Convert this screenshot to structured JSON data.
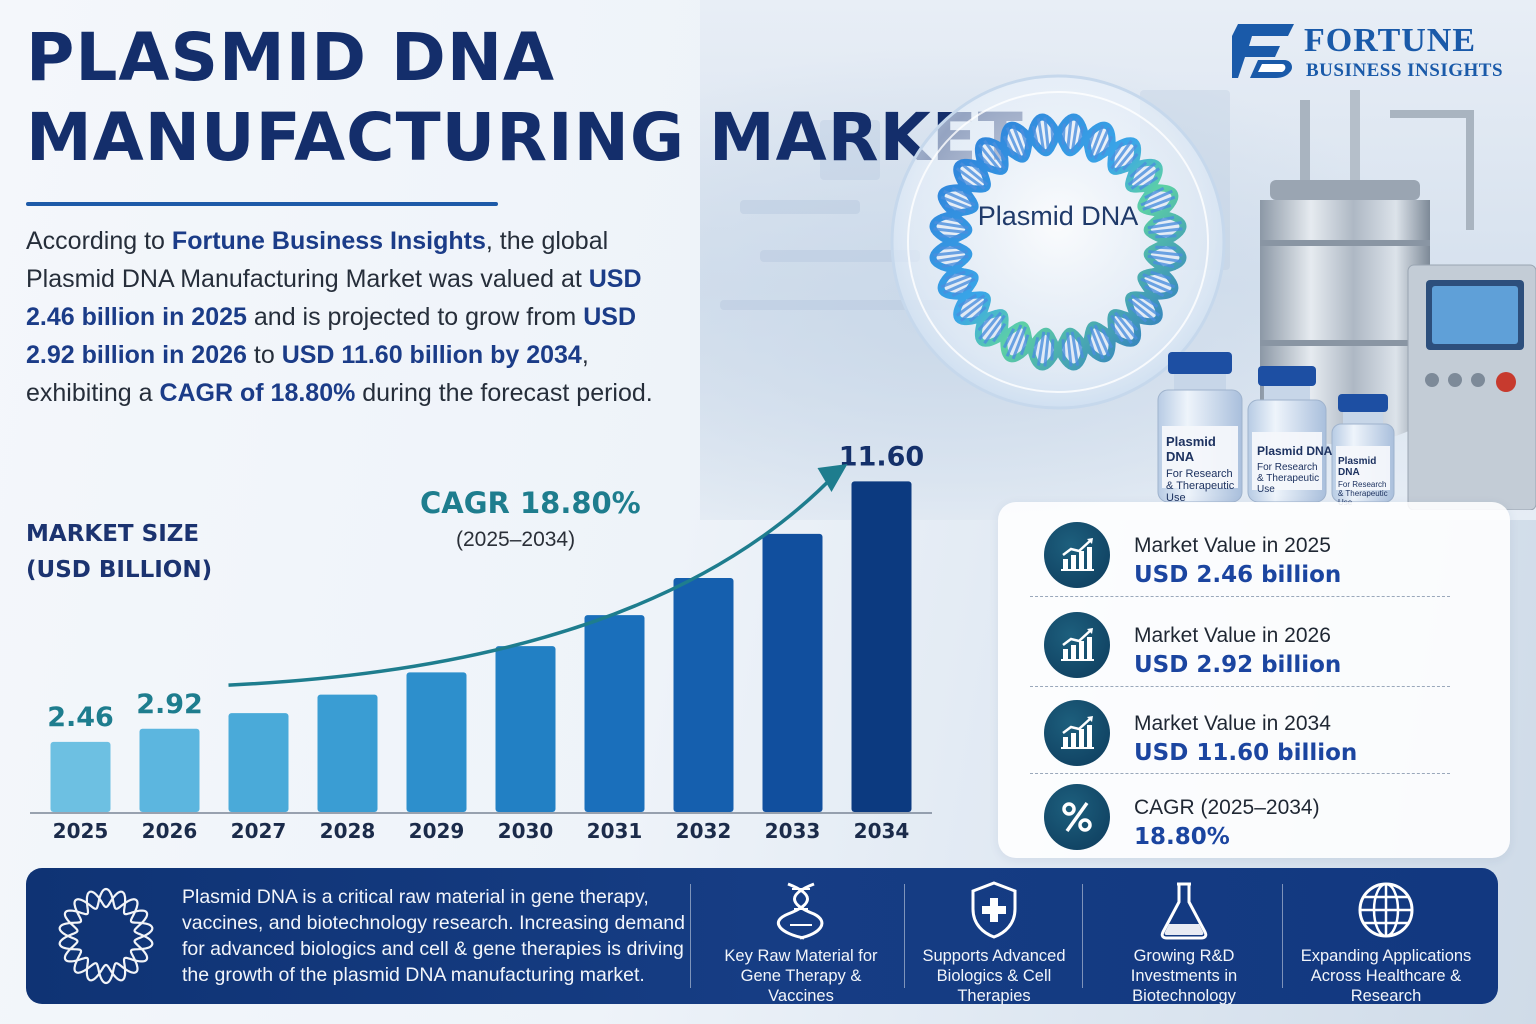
{
  "title_line1": "PLASMID DNA",
  "title_line2": "MANUFACTURING MARKET",
  "brand": {
    "name": "FORTUNE",
    "sub": "BUSINESS INSIGHTS",
    "color": "#1a5aa9"
  },
  "intro": {
    "p1": "According to ",
    "brand": "Fortune Business Insights",
    "p2": ", the global Plasmid DNA Manufacturing Market was valued at ",
    "v2025": "USD 2.46 billion in 2025",
    "p3": " and is projected to grow from ",
    "v2026": "USD 2.92 billion in 2026",
    "p4": " to ",
    "v2034": "USD 11.60 billion by 2034",
    "p5": ", exhibiting a ",
    "cagr": "CAGR of 18.80%",
    "p6": " during the forecast period."
  },
  "dna_label": "Plasmid DNA",
  "vials": [
    {
      "title": "Plasmid DNA",
      "line1": "For Research",
      "line2": "& Therapeutic Use"
    },
    {
      "title": "Plasmid DNA",
      "line1": "For Research",
      "line2": "& Therapeutic Use"
    },
    {
      "title": "Plasmid DNA",
      "line1": "For Research",
      "line2": "& Therapeutic Use"
    }
  ],
  "chart_data": {
    "type": "bar",
    "ylabel_line1": "MARKET SIZE",
    "ylabel_line2": "(USD BILLION)",
    "categories": [
      "2025",
      "2026",
      "2027",
      "2028",
      "2029",
      "2030",
      "2031",
      "2032",
      "2033",
      "2034"
    ],
    "values": [
      2.46,
      2.92,
      3.47,
      4.12,
      4.9,
      5.82,
      6.91,
      8.21,
      9.76,
      11.6
    ],
    "data_labels": [
      "2.46",
      "2.92",
      "",
      "",
      "",
      "",
      "",
      "",
      "",
      "11.60"
    ],
    "ylim": [
      0,
      12
    ],
    "annotation": "CAGR 18.80%",
    "annotation_period": "(2025–2034)",
    "bar_colors": [
      "#6dc0e2",
      "#5cb6df",
      "#4aaad9",
      "#3a9dd3",
      "#2d8fcc",
      "#2280c4",
      "#1a6fbb",
      "#155fae",
      "#114f9e",
      "#0c3a80"
    ],
    "label_color": "#1e7d8e",
    "arrow_color": "#1e7d8e"
  },
  "stats": [
    {
      "label": "Market Value in 2025",
      "value": "USD 2.46 billion",
      "icon": "bar-chart-growth-icon"
    },
    {
      "label": "Market Value in 2026",
      "value": "USD 2.92 billion",
      "icon": "bar-chart-growth-icon"
    },
    {
      "label": "Market Value in 2034",
      "value": "USD 11.60 billion",
      "icon": "bar-chart-growth-icon"
    },
    {
      "label": "CAGR (2025–2034)",
      "value": "18.80%",
      "icon": "percent-icon"
    }
  ],
  "footer": {
    "text": "Plasmid DNA is a critical raw material in gene therapy, vaccines, and biotechnology research. Increasing demand for advanced biologics and cell & gene therapies is driving the growth of the plasmid DNA manufacturing market.",
    "features": [
      {
        "icon": "dna-helix-icon",
        "label": "Key Raw Material for Gene Therapy & Vaccines"
      },
      {
        "icon": "shield-plus-icon",
        "label": "Supports Advanced Biologics & Cell Therapies"
      },
      {
        "icon": "flask-icon",
        "label": "Growing R&D Investments in Biotechnology"
      },
      {
        "icon": "globe-icon",
        "label": "Expanding Applications Across Healthcare & Research"
      }
    ]
  }
}
